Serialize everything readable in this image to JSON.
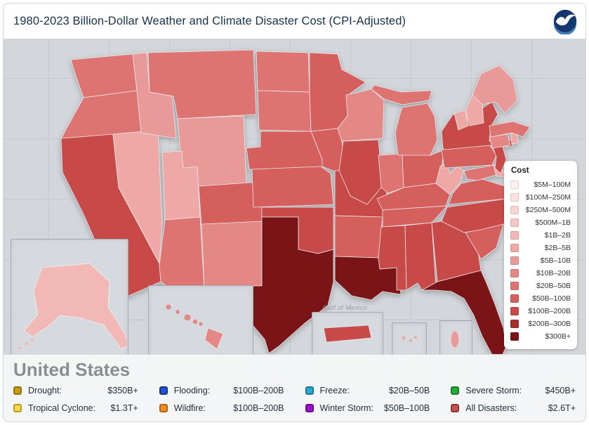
{
  "header": {
    "title": "1980-2023 Billion-Dollar Weather and Climate Disaster Cost (CPI-Adjusted)",
    "logo": "NOAA"
  },
  "map": {
    "basemap_label": "Gulf of Mexico"
  },
  "cost_legend": {
    "title": "Cost",
    "bins": [
      {
        "label": "$5M–100M",
        "color": "#fdf1f0"
      },
      {
        "label": "$100M–250M",
        "color": "#fbe3e2"
      },
      {
        "label": "$250M–500M",
        "color": "#f8d5d4"
      },
      {
        "label": "$500M–1B",
        "color": "#f5c7c5"
      },
      {
        "label": "$1B–2B",
        "color": "#f2b8b6"
      },
      {
        "label": "$2B–5B",
        "color": "#eea9a7"
      },
      {
        "label": "$5B–10B",
        "color": "#e99997"
      },
      {
        "label": "$10B–20B",
        "color": "#e48886"
      },
      {
        "label": "$20B–50B",
        "color": "#dd7472"
      },
      {
        "label": "$50B–100B",
        "color": "#d45f5d"
      },
      {
        "label": "$100B–200B",
        "color": "#c84a48"
      },
      {
        "label": "$200B–300B",
        "color": "#a52e2d"
      },
      {
        "label": "$300B+",
        "color": "#7b1416"
      }
    ]
  },
  "chart_data": {
    "type": "choropleth",
    "title": "1980-2023 Billion-Dollar Weather and Climate Disaster Cost (CPI-Adjusted)",
    "region": "United States",
    "unit": "US dollars, CPI-adjusted, binned by cost_legend.bins (bin is 1-based index)",
    "states": [
      {
        "id": "WA",
        "name": "Washington",
        "bin": 9
      },
      {
        "id": "OR",
        "name": "Oregon",
        "bin": 9
      },
      {
        "id": "CA",
        "name": "California",
        "bin": 11
      },
      {
        "id": "NV",
        "name": "Nevada",
        "bin": 6
      },
      {
        "id": "ID",
        "name": "Idaho",
        "bin": 7
      },
      {
        "id": "MT",
        "name": "Montana",
        "bin": 9
      },
      {
        "id": "WY",
        "name": "Wyoming",
        "bin": 7
      },
      {
        "id": "UT",
        "name": "Utah",
        "bin": 6
      },
      {
        "id": "CO",
        "name": "Colorado",
        "bin": 10
      },
      {
        "id": "AZ",
        "name": "Arizona",
        "bin": 9
      },
      {
        "id": "NM",
        "name": "New Mexico",
        "bin": 8
      },
      {
        "id": "ND",
        "name": "North Dakota",
        "bin": 9
      },
      {
        "id": "SD",
        "name": "South Dakota",
        "bin": 9
      },
      {
        "id": "NE",
        "name": "Nebraska",
        "bin": 10
      },
      {
        "id": "KS",
        "name": "Kansas",
        "bin": 10
      },
      {
        "id": "OK",
        "name": "Oklahoma",
        "bin": 11
      },
      {
        "id": "TX",
        "name": "Texas",
        "bin": 13
      },
      {
        "id": "MN",
        "name": "Minnesota",
        "bin": 10
      },
      {
        "id": "IA",
        "name": "Iowa",
        "bin": 10
      },
      {
        "id": "MO",
        "name": "Missouri",
        "bin": 11
      },
      {
        "id": "AR",
        "name": "Arkansas",
        "bin": 10
      },
      {
        "id": "LA",
        "name": "Louisiana",
        "bin": 13
      },
      {
        "id": "WI",
        "name": "Wisconsin",
        "bin": 8
      },
      {
        "id": "IL",
        "name": "Illinois",
        "bin": 11
      },
      {
        "id": "IN",
        "name": "Indiana",
        "bin": 9
      },
      {
        "id": "OH",
        "name": "Ohio",
        "bin": 10
      },
      {
        "id": "MI",
        "name": "Michigan",
        "bin": 9
      },
      {
        "id": "KY",
        "name": "Kentucky",
        "bin": 10
      },
      {
        "id": "TN",
        "name": "Tennessee",
        "bin": 10
      },
      {
        "id": "MS",
        "name": "Mississippi",
        "bin": 11
      },
      {
        "id": "AL",
        "name": "Alabama",
        "bin": 11
      },
      {
        "id": "GA",
        "name": "Georgia",
        "bin": 11
      },
      {
        "id": "FL",
        "name": "Florida",
        "bin": 13
      },
      {
        "id": "SC",
        "name": "South Carolina",
        "bin": 10
      },
      {
        "id": "NC",
        "name": "North Carolina",
        "bin": 11
      },
      {
        "id": "VA",
        "name": "Virginia",
        "bin": 10
      },
      {
        "id": "WV",
        "name": "West Virginia",
        "bin": 6
      },
      {
        "id": "MD",
        "name": "Maryland",
        "bin": 9
      },
      {
        "id": "DE",
        "name": "Delaware",
        "bin": 6
      },
      {
        "id": "PA",
        "name": "Pennsylvania",
        "bin": 10
      },
      {
        "id": "NJ",
        "name": "New Jersey",
        "bin": 11
      },
      {
        "id": "NY",
        "name": "New York",
        "bin": 11
      },
      {
        "id": "CT",
        "name": "Connecticut",
        "bin": 8
      },
      {
        "id": "RI",
        "name": "Rhode Island",
        "bin": 6
      },
      {
        "id": "MA",
        "name": "Massachusetts",
        "bin": 9
      },
      {
        "id": "VT",
        "name": "Vermont",
        "bin": 6
      },
      {
        "id": "NH",
        "name": "New Hampshire",
        "bin": 6
      },
      {
        "id": "ME",
        "name": "Maine",
        "bin": 7
      },
      {
        "id": "AK",
        "name": "Alaska",
        "bin": 5
      },
      {
        "id": "HI",
        "name": "Hawaii",
        "bin": 8
      },
      {
        "id": "PR",
        "name": "Puerto Rico",
        "bin": 11
      },
      {
        "id": "VI",
        "name": "U.S. Virgin Islands",
        "bin": 6
      },
      {
        "id": "GU",
        "name": "Guam",
        "bin": 7
      }
    ]
  },
  "footer": {
    "title": "United States",
    "items": [
      {
        "label": "Drought:",
        "value": "$350B+",
        "color": "#c59f18",
        "border": "#8f7110"
      },
      {
        "label": "Flooding:",
        "value": "$100B–200B",
        "color": "#2353d9",
        "border": "#16337e"
      },
      {
        "label": "Freeze:",
        "value": "$20B–50B",
        "color": "#2aa8cf",
        "border": "#1b7694"
      },
      {
        "label": "Severe Storm:",
        "value": "$450B+",
        "color": "#22ad35",
        "border": "#167b24"
      },
      {
        "label": "Tropical Cyclone:",
        "value": "$1.3T+",
        "color": "#f6d844",
        "border": "#b89c1f"
      },
      {
        "label": "Wildfire:",
        "value": "$100B–200B",
        "color": "#f68b20",
        "border": "#b25f12"
      },
      {
        "label": "Winter Storm:",
        "value": "$50B–100B",
        "color": "#9b10d1",
        "border": "#6c0b90"
      },
      {
        "label": "All Disasters:",
        "value": "$2.6T+",
        "color": "#c4524e",
        "border": "#8c3431"
      }
    ]
  }
}
